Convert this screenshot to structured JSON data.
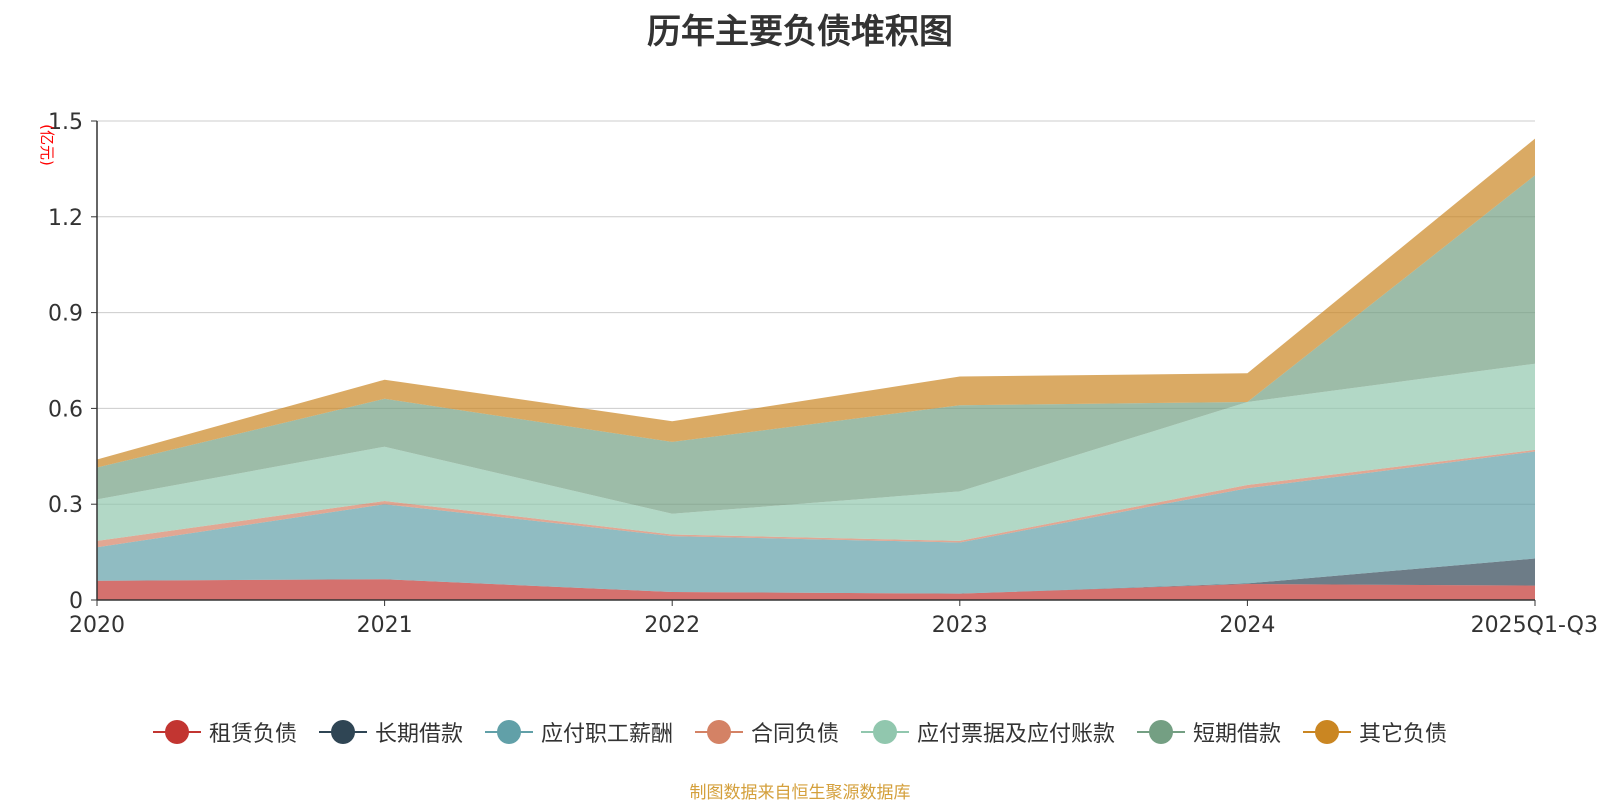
{
  "chart_data": {
    "type": "area",
    "stacked": true,
    "title": "历年主要负债堆积图",
    "ylabel": "(亿元)",
    "xlabel": "",
    "categories": [
      "2020",
      "2021",
      "2022",
      "2023",
      "2024",
      "2025Q1-Q3"
    ],
    "ylim": [
      0,
      1.5
    ],
    "yticks": [
      0,
      0.3,
      0.6,
      0.9,
      1.2,
      1.5
    ],
    "ytick_labels": [
      "0",
      "0.3",
      "0.6",
      "0.9",
      "1.2",
      "1.5"
    ],
    "grid": true,
    "legend_position": "bottom",
    "series": [
      {
        "name": "租赁负债",
        "values": [
          0.06,
          0.065,
          0.025,
          0.02,
          0.05,
          0.045
        ],
        "color": "#c23531"
      },
      {
        "name": "长期借款",
        "values": [
          0,
          0,
          0,
          0,
          0.002,
          0.085
        ],
        "color": "#2f4554"
      },
      {
        "name": "应付职工薪酬",
        "values": [
          0.105,
          0.235,
          0.175,
          0.16,
          0.298,
          0.335
        ],
        "color": "#61a0a8"
      },
      {
        "name": "合同负债",
        "values": [
          0.02,
          0.01,
          0.005,
          0.005,
          0.01,
          0.005
        ],
        "color": "#d48265"
      },
      {
        "name": "应付票据及应付账款",
        "values": [
          0.13,
          0.17,
          0.065,
          0.155,
          0.26,
          0.27
        ],
        "color": "#91c7ae"
      },
      {
        "name": "短期借款",
        "values": [
          0.1,
          0.15,
          0.225,
          0.27,
          0,
          0.59
        ],
        "color": "#749f83"
      },
      {
        "name": "其它负债",
        "values": [
          0.025,
          0.06,
          0.065,
          0.09,
          0.09,
          0.115
        ],
        "color": "#ca8622"
      }
    ],
    "source_note": "制图数据来自恒生聚源数据库"
  }
}
